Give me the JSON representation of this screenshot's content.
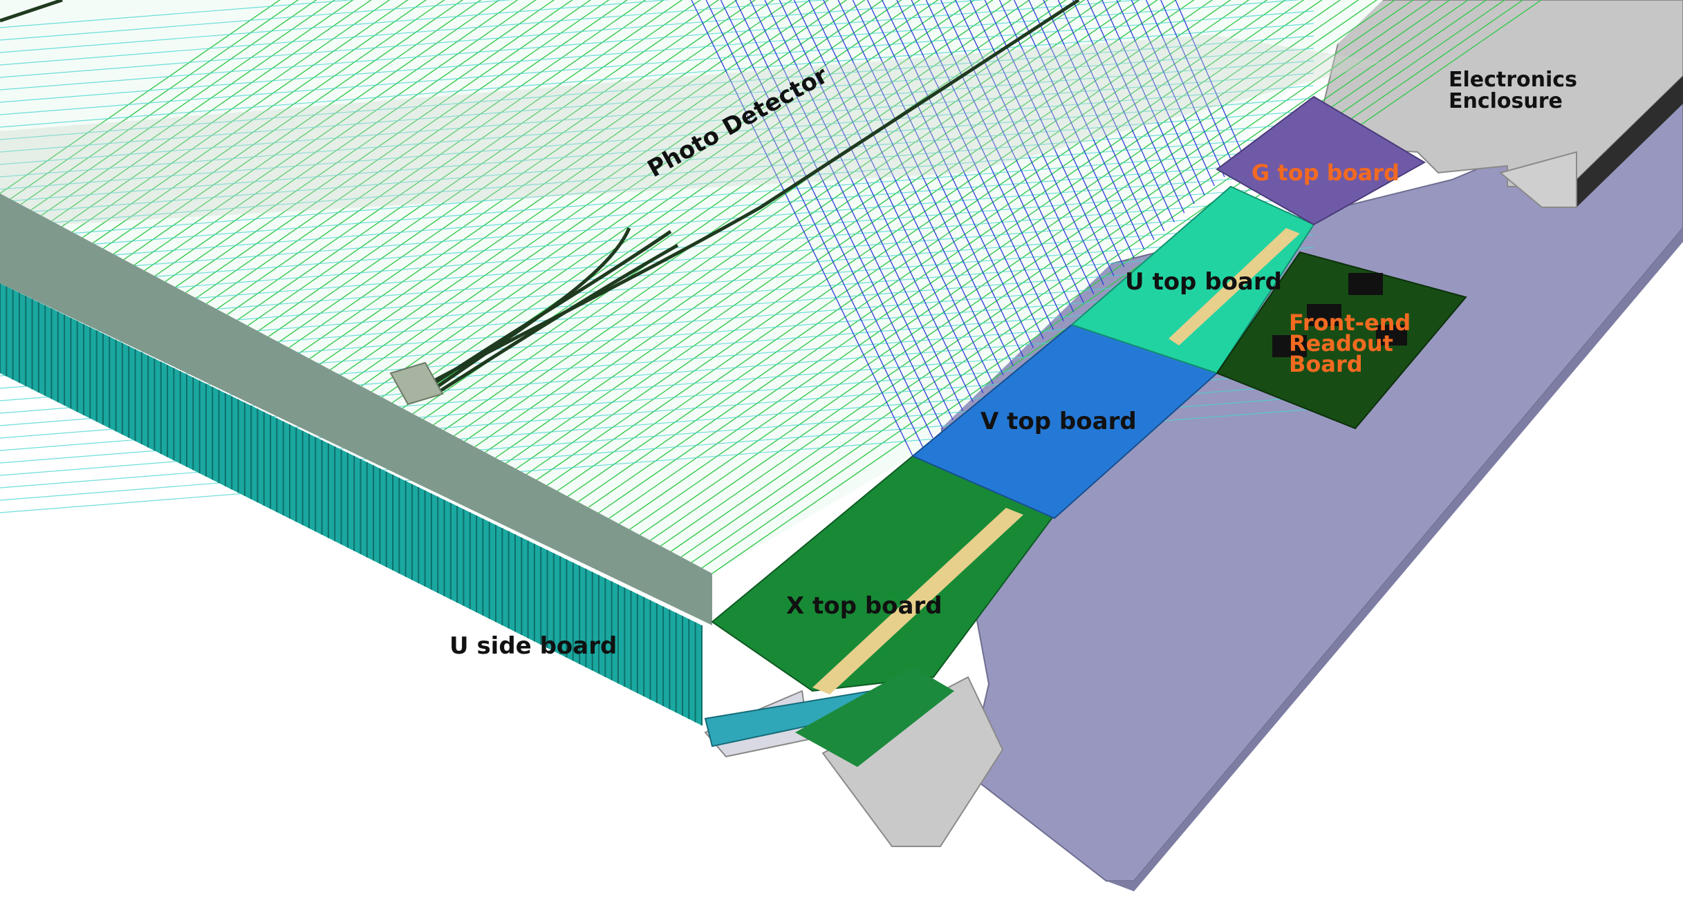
{
  "labels": {
    "photo_detector": "Photo Detector",
    "electronics_enclosure_line1": "Electronics",
    "electronics_enclosure_line2": "Enclosure",
    "g_top_board": "G top board",
    "u_top_board": "U top board",
    "front_end_line1": "Front-end",
    "front_end_line2": "Readout",
    "front_end_line3": "Board",
    "v_top_board": "V top board",
    "x_top_board": "X top board",
    "u_side_board": "U side board"
  },
  "colors": {
    "x_board": "#188a36",
    "v_board": "#2579d6",
    "u_board": "#22d3a2",
    "g_board": "#6f5aa8",
    "front_end_board": "#174d15",
    "side_board": "#1aa8a0",
    "base_plate": "#9797bf",
    "enclosure": "#c6c6c6",
    "wire_green": "#35c94f",
    "wire_cyan": "#4ad6d2",
    "wire_blue": "#2d3bd6",
    "label_orange": "#f26a21"
  }
}
